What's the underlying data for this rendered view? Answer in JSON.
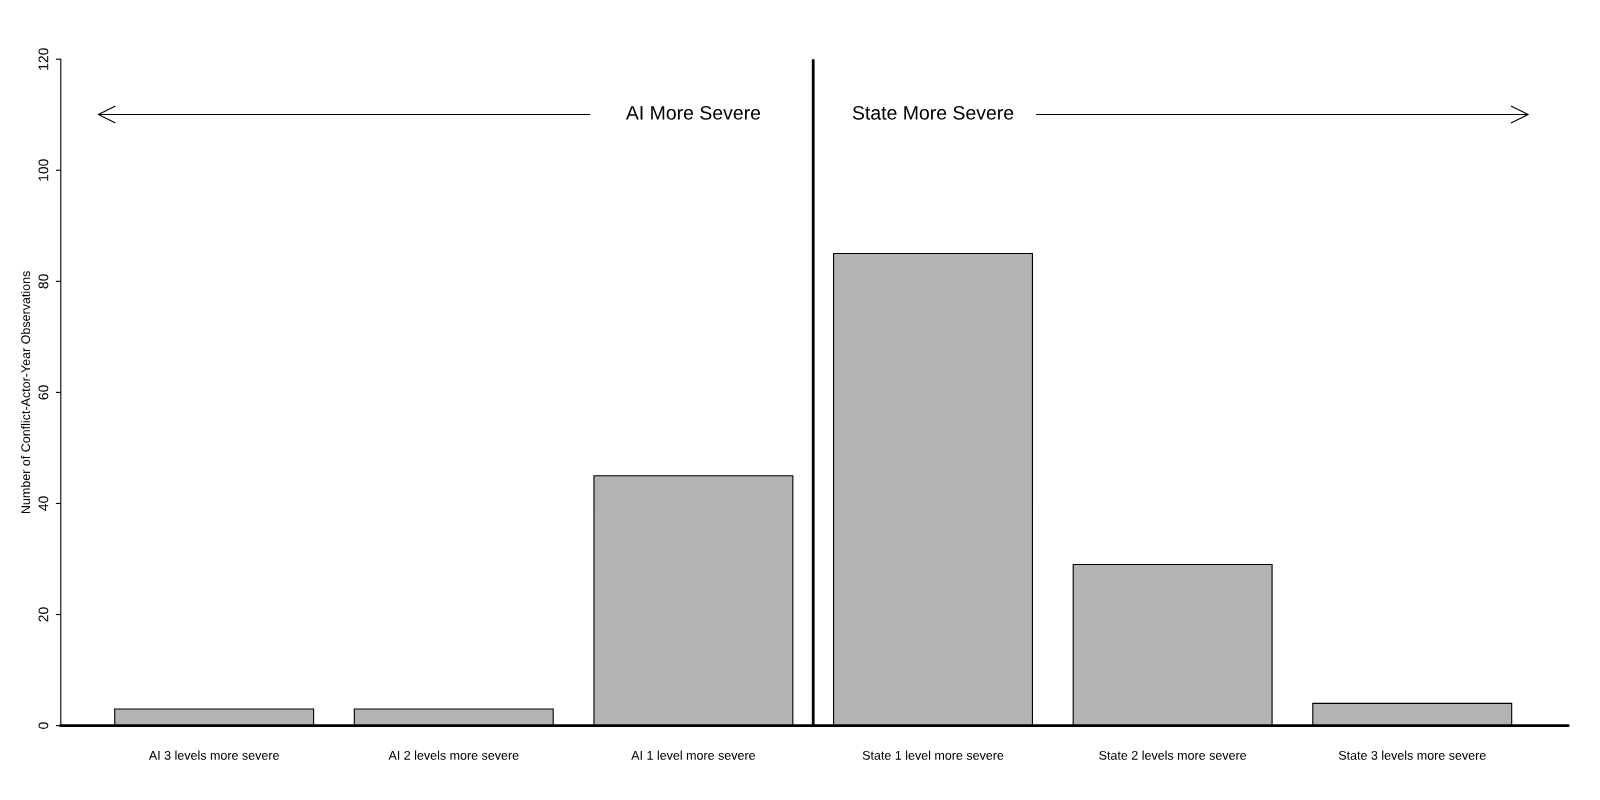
{
  "chart_data": {
    "type": "bar",
    "ylabel": "Number of Conflict-Actor-Year Observations",
    "categories": [
      "AI 3 levels more severe",
      "AI 2 levels more severe",
      "AI 1 level more severe",
      "State 1 level more severe",
      "State 2 levels more severe",
      "State 3 levels more severe"
    ],
    "values": [
      3,
      3,
      45,
      85,
      29,
      4
    ],
    "color": "#b3b3b3",
    "ylim": [
      0,
      120
    ],
    "yticks": [
      0,
      20,
      40,
      60,
      80,
      100,
      120
    ],
    "annotations": [
      "AI More Severe",
      "State More Severe"
    ],
    "grid": false,
    "legend": false
  }
}
